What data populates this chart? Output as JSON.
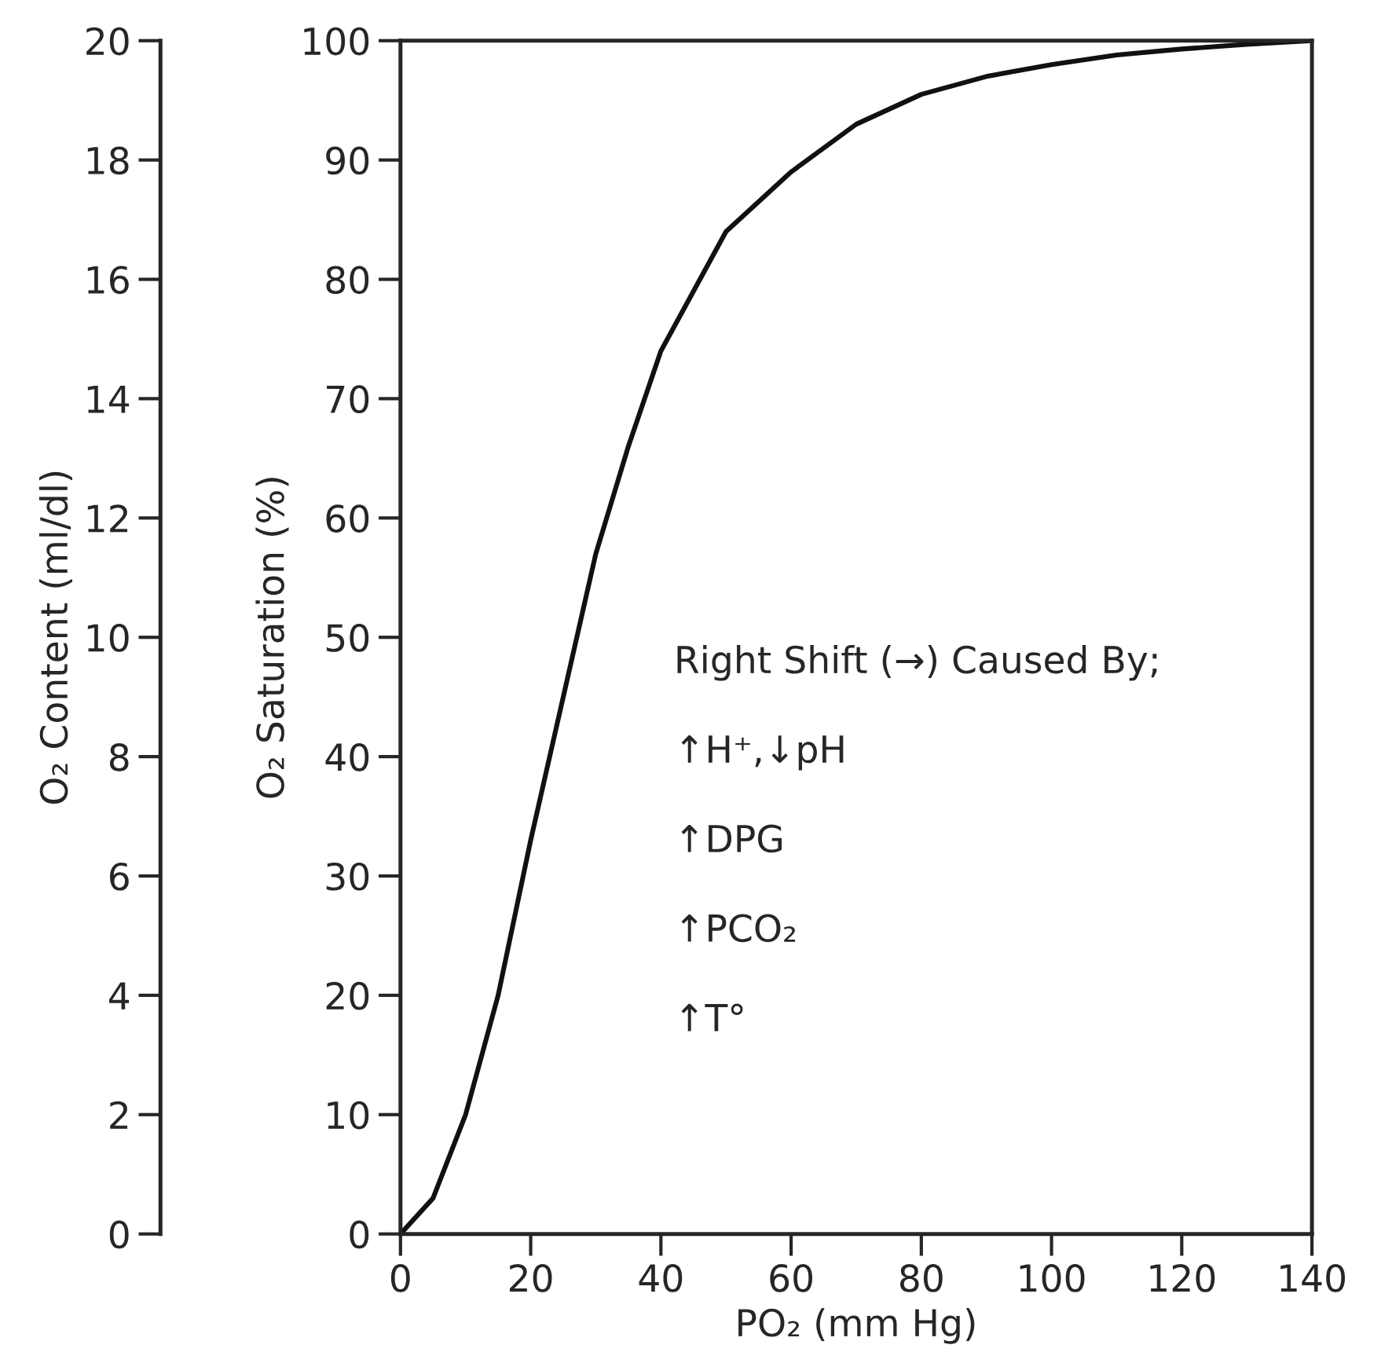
{
  "chart_data": {
    "type": "line",
    "xlabel": "PO₂ (mm Hg)",
    "ylabel": "O₂ Saturation (%)",
    "y2label": "O₂ Content (ml/dl)",
    "x": [
      0,
      5,
      10,
      15,
      20,
      25,
      30,
      35,
      40,
      45,
      50,
      60,
      70,
      80,
      90,
      100,
      110,
      120,
      130,
      140
    ],
    "series": [
      {
        "color": "#111111",
        "values": [
          0,
          3,
          10,
          20,
          33,
          45,
          57,
          66,
          74,
          79,
          84,
          89,
          93,
          95.5,
          97,
          98,
          98.8,
          99.3,
          99.7,
          100
        ]
      }
    ],
    "xlim": [
      0,
      140
    ],
    "xticks": [
      0,
      20,
      40,
      60,
      80,
      100,
      120,
      140
    ],
    "ylim": [
      0,
      100
    ],
    "yticks": [
      0,
      10,
      20,
      30,
      40,
      50,
      60,
      70,
      80,
      90,
      100
    ],
    "y2lim": [
      0,
      20
    ],
    "y2ticks": [
      0,
      2,
      4,
      6,
      8,
      10,
      12,
      14,
      16,
      18,
      20
    ],
    "annotations": [
      "Right Shift (→) Caused By;",
      "↑H⁺,↓pH",
      "↑DPG",
      "↑PCO₂",
      "↑T°"
    ],
    "grid": false,
    "legend": false,
    "marker": "none",
    "line_style": "solid"
  }
}
